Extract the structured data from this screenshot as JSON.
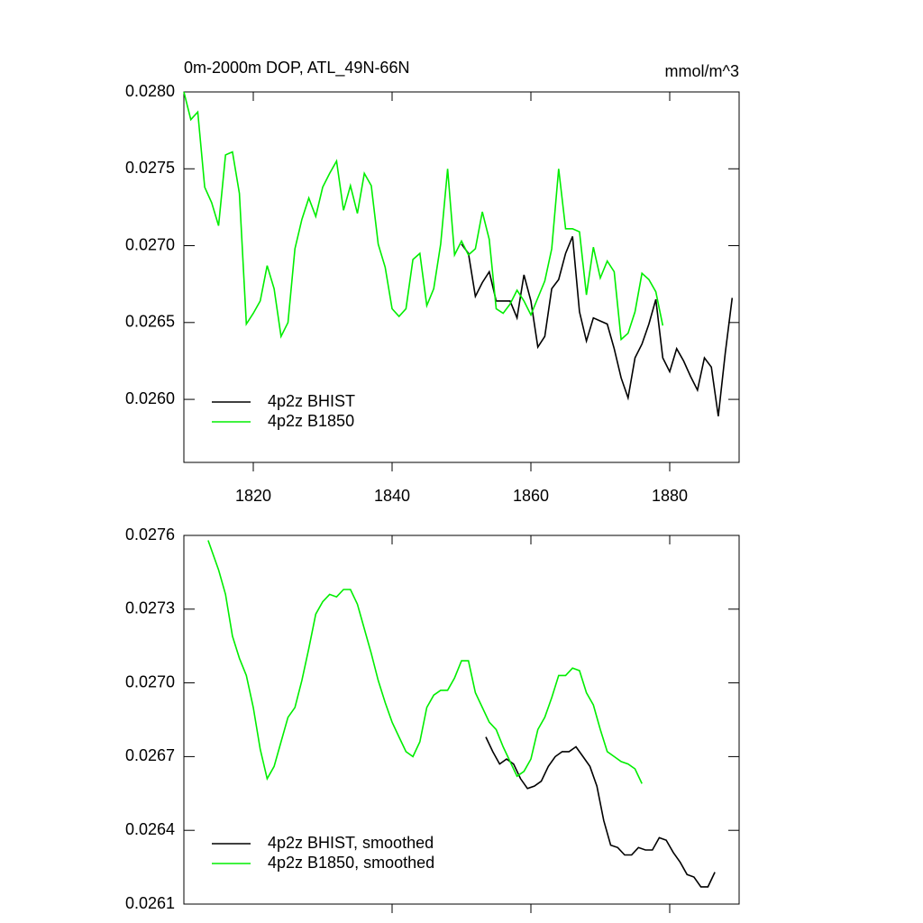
{
  "chart_data": [
    {
      "type": "line",
      "title": "0m-2000m DOP, ATL_49N-66N",
      "units": "mmol/m^3",
      "xlim": [
        1810,
        1890
      ],
      "xticks": [
        1820,
        1840,
        1860,
        1880
      ],
      "ylim": [
        0.02559,
        0.028
      ],
      "yticks": [
        {
          "value": 0.028,
          "label": "0.0280"
        },
        0.0275,
        {
          "value": 0.027,
          "label": "0.0270"
        },
        0.0265,
        {
          "value": 0.026,
          "label": "0.0260"
        }
      ],
      "xticklabels": true,
      "legend": "lower left",
      "series": [
        {
          "name": "4p2z BHIST",
          "color": "#000000",
          "x": [
            1850,
            1851,
            1852,
            1853,
            1854,
            1855,
            1856,
            1857,
            1858,
            1859,
            1860,
            1861,
            1862,
            1863,
            1864,
            1865,
            1866,
            1867,
            1868,
            1869,
            1870,
            1871,
            1872,
            1873,
            1874,
            1875,
            1876,
            1877,
            1878,
            1879,
            1880,
            1881,
            1882,
            1883,
            1884,
            1885,
            1886,
            1887,
            1888,
            1889
          ],
          "values": [
            0.02701,
            0.02695,
            0.02667,
            0.02676,
            0.02683,
            0.02664,
            0.02664,
            0.02664,
            0.02653,
            0.02681,
            0.02664,
            0.02634,
            0.02641,
            0.02672,
            0.02678,
            0.02695,
            0.02706,
            0.02657,
            0.02638,
            0.02653,
            0.02651,
            0.02649,
            0.02633,
            0.02614,
            0.02601,
            0.02627,
            0.02636,
            0.02649,
            0.02665,
            0.02627,
            0.02618,
            0.02633,
            0.02625,
            0.02615,
            0.02606,
            0.02627,
            0.02621,
            0.02589,
            0.0263,
            0.02666
          ]
        },
        {
          "name": "4p2z B1850",
          "color": "#00ee00",
          "x": [
            1810,
            1811,
            1812,
            1813,
            1814,
            1815,
            1816,
            1817,
            1818,
            1819,
            1820,
            1821,
            1822,
            1823,
            1824,
            1825,
            1826,
            1827,
            1828,
            1829,
            1830,
            1831,
            1832,
            1833,
            1834,
            1835,
            1836,
            1837,
            1838,
            1839,
            1840,
            1841,
            1842,
            1843,
            1844,
            1845,
            1846,
            1847,
            1848,
            1849,
            1850,
            1851,
            1852,
            1853,
            1854,
            1855,
            1856,
            1857,
            1858,
            1859,
            1860,
            1861,
            1862,
            1863,
            1864,
            1865,
            1866,
            1867,
            1868,
            1869,
            1870,
            1871,
            1872,
            1873,
            1874,
            1875,
            1876,
            1877,
            1878,
            1879
          ],
          "values": [
            0.028,
            0.02782,
            0.02787,
            0.02738,
            0.02728,
            0.02713,
            0.02759,
            0.02761,
            0.02734,
            0.02649,
            0.02656,
            0.02664,
            0.02687,
            0.02672,
            0.02641,
            0.0265,
            0.02698,
            0.02717,
            0.02731,
            0.02719,
            0.02738,
            0.02747,
            0.02755,
            0.02723,
            0.02739,
            0.02721,
            0.02747,
            0.02739,
            0.02701,
            0.02686,
            0.02659,
            0.02654,
            0.02659,
            0.02691,
            0.02695,
            0.02661,
            0.02672,
            0.02701,
            0.0275,
            0.02694,
            0.02703,
            0.02694,
            0.02698,
            0.02722,
            0.02704,
            0.02659,
            0.02656,
            0.02662,
            0.02671,
            0.02664,
            0.02655,
            0.02666,
            0.02677,
            0.02698,
            0.0275,
            0.02711,
            0.02711,
            0.02709,
            0.02668,
            0.02699,
            0.02679,
            0.0269,
            0.02683,
            0.02639,
            0.02643,
            0.02657,
            0.02682,
            0.02678,
            0.0267,
            0.02648
          ]
        }
      ]
    },
    {
      "type": "line",
      "xlim": [
        1810,
        1890
      ],
      "xticks": [
        1840,
        1860,
        1880
      ],
      "ylim": [
        0.0261,
        0.0276
      ],
      "yticks": [
        0.0276,
        0.0273,
        {
          "value": 0.027,
          "label": "0.0270"
        },
        0.0267,
        0.0264,
        0.0261
      ],
      "xticklabels": false,
      "legend": "lower left",
      "series": [
        {
          "name": "4p2z BHIST, smoothed",
          "color": "#000000",
          "x": [
            1853.5,
            1854.5,
            1855.5,
            1856.5,
            1857.5,
            1858.5,
            1859.5,
            1860.5,
            1861.5,
            1862.5,
            1863.5,
            1864.5,
            1865.5,
            1866.5,
            1867.5,
            1868.5,
            1869.5,
            1870.5,
            1871.5,
            1872.5,
            1873.5,
            1874.5,
            1875.5,
            1876.5,
            1877.5,
            1878.5,
            1879.5,
            1880.5,
            1881.5,
            1882.5,
            1883.5,
            1884.5,
            1885.5,
            1886.5
          ],
          "values": [
            0.02678,
            0.02672,
            0.02667,
            0.02669,
            0.02667,
            0.02661,
            0.02657,
            0.02658,
            0.0266,
            0.02666,
            0.0267,
            0.02672,
            0.02672,
            0.02674,
            0.0267,
            0.02666,
            0.02658,
            0.02644,
            0.02634,
            0.02633,
            0.0263,
            0.0263,
            0.02633,
            0.02632,
            0.02632,
            0.02637,
            0.02636,
            0.02631,
            0.02627,
            0.02622,
            0.02621,
            0.02617,
            0.02617,
            0.02623
          ]
        },
        {
          "name": "4p2z B1850, smoothed",
          "color": "#00ee00",
          "x": [
            1813.5,
            1815,
            1816,
            1817,
            1818,
            1819,
            1820,
            1821,
            1822,
            1823,
            1824,
            1825,
            1826,
            1827,
            1828,
            1829,
            1830,
            1831,
            1832,
            1833,
            1834,
            1835,
            1836,
            1837,
            1838,
            1839,
            1840,
            1841,
            1842,
            1843,
            1844,
            1845,
            1846,
            1847,
            1848,
            1849,
            1850,
            1851,
            1852,
            1853,
            1854,
            1855,
            1856,
            1857,
            1858,
            1859,
            1860,
            1861,
            1862,
            1863,
            1864,
            1865,
            1866,
            1867,
            1868,
            1869,
            1870,
            1871,
            1872,
            1873,
            1874,
            1875,
            1876
          ],
          "values": [
            0.02758,
            0.02746,
            0.02736,
            0.02719,
            0.0271,
            0.02703,
            0.0269,
            0.02673,
            0.02661,
            0.02666,
            0.02676,
            0.02686,
            0.0269,
            0.02701,
            0.02714,
            0.02728,
            0.02733,
            0.02736,
            0.02735,
            0.02738,
            0.02738,
            0.02732,
            0.02722,
            0.02712,
            0.02701,
            0.02692,
            0.02684,
            0.02678,
            0.02672,
            0.0267,
            0.02676,
            0.0269,
            0.02695,
            0.02697,
            0.02697,
            0.02702,
            0.02709,
            0.02709,
            0.02696,
            0.0269,
            0.02684,
            0.02681,
            0.02674,
            0.02668,
            0.02662,
            0.02664,
            0.02669,
            0.02681,
            0.02686,
            0.02694,
            0.02703,
            0.02703,
            0.02706,
            0.02705,
            0.02696,
            0.02691,
            0.02681,
            0.02672,
            0.0267,
            0.02668,
            0.02667,
            0.02665,
            0.02659
          ]
        }
      ]
    }
  ]
}
